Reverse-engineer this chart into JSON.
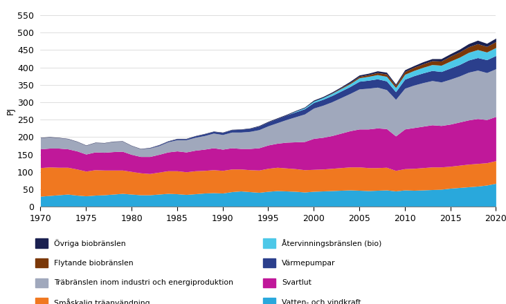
{
  "years": [
    1970,
    1971,
    1972,
    1973,
    1974,
    1975,
    1976,
    1977,
    1978,
    1979,
    1980,
    1981,
    1982,
    1983,
    1984,
    1985,
    1986,
    1987,
    1988,
    1989,
    1990,
    1991,
    1992,
    1993,
    1994,
    1995,
    1996,
    1997,
    1998,
    1999,
    2000,
    2001,
    2002,
    2003,
    2004,
    2005,
    2006,
    2007,
    2008,
    2009,
    2010,
    2011,
    2012,
    2013,
    2014,
    2015,
    2016,
    2017,
    2018,
    2019,
    2020
  ],
  "series": {
    "Vatten- och vindkraft": [
      30,
      32,
      34,
      36,
      33,
      31,
      33,
      34,
      36,
      38,
      36,
      34,
      34,
      36,
      38,
      37,
      35,
      37,
      39,
      40,
      39,
      43,
      45,
      43,
      41,
      44,
      46,
      45,
      44,
      42,
      44,
      45,
      46,
      47,
      48,
      47,
      46,
      47,
      48,
      45,
      48,
      47,
      48,
      49,
      50,
      53,
      55,
      57,
      59,
      62,
      67
    ],
    "Småskalig träanvändning": [
      82,
      82,
      79,
      77,
      75,
      71,
      73,
      71,
      69,
      67,
      65,
      63,
      61,
      63,
      65,
      66,
      65,
      66,
      65,
      66,
      65,
      65,
      63,
      63,
      64,
      66,
      67,
      66,
      65,
      64,
      63,
      63,
      64,
      65,
      66,
      67,
      66,
      65,
      65,
      59,
      61,
      63,
      64,
      65,
      64,
      63,
      64,
      65,
      65,
      64,
      65
    ],
    "Svartlut": [
      54,
      54,
      55,
      53,
      52,
      49,
      51,
      51,
      53,
      54,
      49,
      47,
      49,
      51,
      54,
      57,
      57,
      59,
      61,
      63,
      61,
      61,
      59,
      61,
      64,
      67,
      69,
      74,
      77,
      81,
      89,
      91,
      94,
      99,
      104,
      109,
      111,
      114,
      111,
      99,
      114,
      117,
      119,
      121,
      119,
      121,
      124,
      127,
      129,
      124,
      127
    ],
    "Träbränslen inom industri och energiproduktion": [
      32,
      32,
      30,
      29,
      27,
      25,
      27,
      27,
      29,
      29,
      25,
      22,
      24,
      25,
      29,
      32,
      35,
      37,
      39,
      42,
      42,
      45,
      47,
      49,
      52,
      55,
      59,
      65,
      72,
      79,
      87,
      92,
      97,
      102,
      107,
      115,
      117,
      117,
      112,
      105,
      117,
      122,
      125,
      127,
      125,
      129,
      132,
      137,
      139,
      135,
      137
    ],
    "Värmepumpar": [
      0,
      0,
      0,
      0,
      0,
      0,
      0,
      0,
      0,
      0,
      0,
      0,
      1,
      2,
      2,
      3,
      3,
      4,
      5,
      5,
      6,
      7,
      8,
      9,
      10,
      11,
      12,
      13,
      14,
      15,
      16,
      17,
      18,
      19,
      20,
      22,
      23,
      24,
      25,
      22,
      26,
      27,
      28,
      29,
      30,
      32,
      33,
      35,
      36,
      37,
      38
    ],
    "Återvinningsbränslen (bio)": [
      0,
      0,
      0,
      0,
      0,
      0,
      0,
      0,
      0,
      0,
      0,
      0,
      0,
      0,
      0,
      0,
      0,
      0,
      0,
      0,
      0,
      0,
      0,
      0,
      0,
      0,
      0,
      0,
      2,
      3,
      4,
      5,
      6,
      7,
      8,
      10,
      11,
      12,
      13,
      12,
      14,
      15,
      16,
      17,
      18,
      20,
      21,
      22,
      23,
      22,
      23
    ],
    "Flytande biobränslen": [
      0,
      0,
      0,
      0,
      0,
      0,
      0,
      0,
      0,
      0,
      0,
      0,
      0,
      0,
      0,
      0,
      0,
      0,
      0,
      0,
      0,
      0,
      0,
      0,
      0,
      0,
      0,
      0,
      0,
      0,
      0,
      0,
      1,
      2,
      3,
      4,
      5,
      6,
      7,
      6,
      8,
      9,
      10,
      11,
      12,
      14,
      15,
      16,
      17,
      16,
      17
    ],
    "Övriga biobränslen": [
      1,
      1,
      1,
      1,
      1,
      1,
      1,
      1,
      1,
      1,
      1,
      1,
      1,
      1,
      1,
      1,
      1,
      1,
      1,
      1,
      1,
      1,
      1,
      1,
      2,
      2,
      2,
      2,
      2,
      2,
      3,
      3,
      3,
      3,
      4,
      4,
      4,
      5,
      5,
      4,
      5,
      5,
      6,
      6,
      7,
      7,
      8,
      9,
      10,
      9,
      10
    ]
  },
  "colors": {
    "Vatten- och vindkraft": "#29A8DC",
    "Småskalig träanvändning": "#F07820",
    "Svartlut": "#C0189A",
    "Träbränslen inom industri och energiproduktion": "#A0A8BC",
    "Värmepumpar": "#2B3F8C",
    "Återvinningsbränslen (bio)": "#4DC8E8",
    "Flytande biobränslen": "#7B3808",
    "Övriga biobränslen": "#1A2050"
  },
  "ylabel": "PJ",
  "ylim": [
    0,
    550
  ],
  "yticks": [
    0,
    50,
    100,
    150,
    200,
    250,
    300,
    350,
    400,
    450,
    500,
    550
  ],
  "xticks": [
    1970,
    1975,
    1980,
    1985,
    1990,
    1995,
    2000,
    2005,
    2010,
    2015,
    2020
  ],
  "legend_left": [
    "Övriga biobränslen",
    "Flytande biobränslen",
    "Träbränslen inom industri och energiproduktion",
    "Småskalig träanvändning"
  ],
  "legend_right": [
    "Återvinningsbränslen (bio)",
    "Värmepumpar",
    "Svartlut",
    "Vatten- och vindkraft"
  ]
}
